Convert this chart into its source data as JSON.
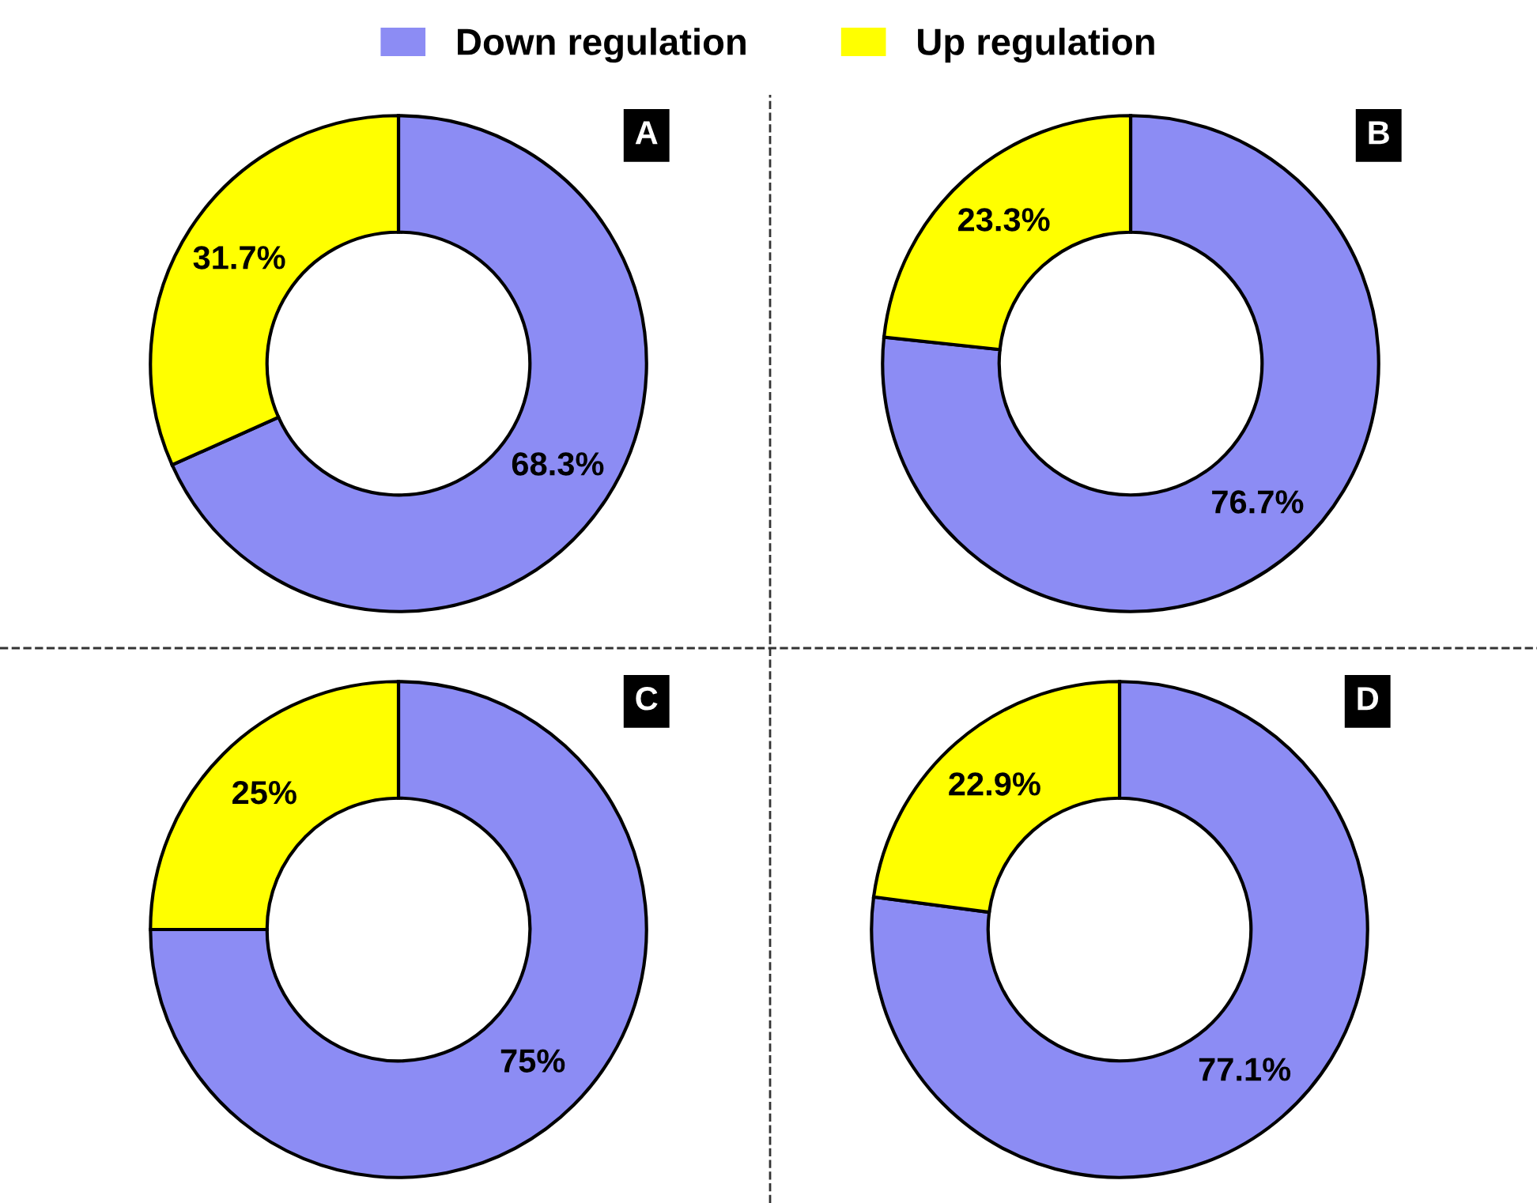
{
  "chart_data": [
    {
      "type": "donut",
      "title": "A",
      "categories": [
        "Down regulation",
        "Up regulation"
      ],
      "values": [
        68.3,
        31.7
      ],
      "value_labels": [
        "68.3%",
        "31.7%"
      ],
      "colors": [
        "#8c8cf4",
        "#ffff00"
      ],
      "legend": "top"
    },
    {
      "type": "donut",
      "title": "B",
      "categories": [
        null,
        null
      ],
      "values": [
        76.7,
        23.3
      ],
      "value_labels": [
        "76.7%",
        "23.3%"
      ],
      "colors": [
        "#8c8cf4",
        "#ffff00"
      ]
    },
    {
      "type": "donut",
      "title": "C",
      "categories": [
        null,
        null
      ],
      "values": [
        75,
        25
      ],
      "value_labels": [
        "75%",
        "25%"
      ],
      "colors": [
        "#8c8cf4",
        "#ffff00"
      ]
    },
    {
      "type": "donut",
      "title": "D",
      "categories": [
        null,
        null
      ],
      "values": [
        77.1,
        22.9
      ],
      "value_labels": [
        "77.1%",
        "22.9%"
      ],
      "colors": [
        "#8c8cf4",
        "#ffff00"
      ]
    }
  ]
}
